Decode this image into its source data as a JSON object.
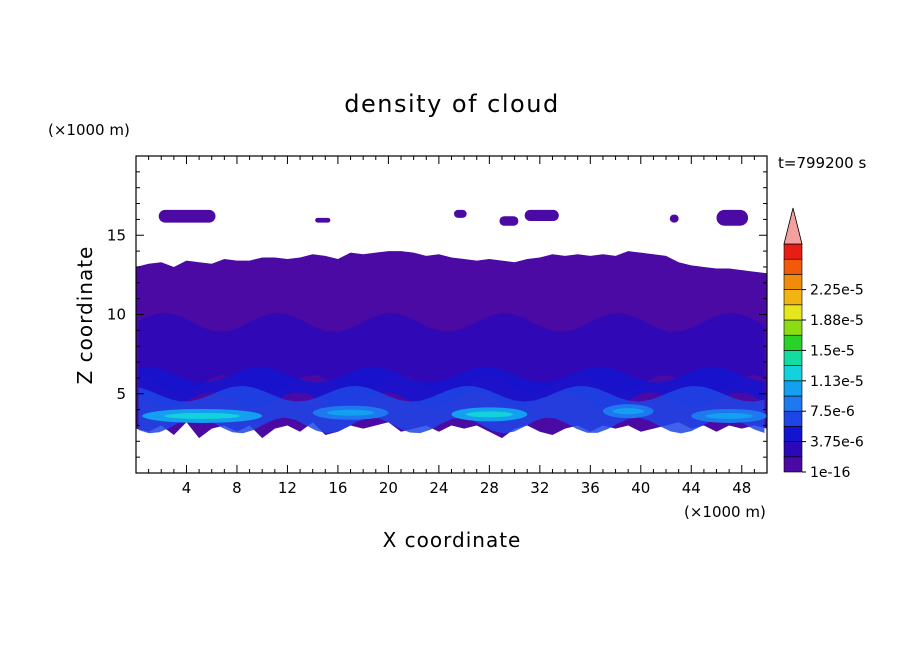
{
  "chart_data": {
    "type": "heatmap",
    "title": "density of cloud",
    "xlabel": "X coordinate",
    "ylabel": "Z coordinate",
    "x_unit": "(×1000 m)",
    "y_unit": "(×1000 m)",
    "time_label": "t=799200 s",
    "xlim": [
      0,
      50
    ],
    "ylim": [
      0,
      20
    ],
    "x_ticks": [
      4,
      8,
      12,
      16,
      20,
      24,
      28,
      32,
      36,
      40,
      44,
      48
    ],
    "y_ticks": [
      5,
      10,
      15
    ],
    "colorbar": {
      "colors": [
        "#4b0aa3",
        "#2c08b8",
        "#1414d0",
        "#1e46e6",
        "#1e78f0",
        "#14a0f0",
        "#14d2dc",
        "#14dca0",
        "#28d228",
        "#8cdc14",
        "#e6e61e",
        "#f0b414",
        "#f08c0a",
        "#f05a0a",
        "#e61e14"
      ],
      "extend_color": "#f4a0a0",
      "labels": [
        "1e-16",
        "3.75e-6",
        "7.5e-6",
        "1.13e-5",
        "1.5e-5",
        "1.88e-5",
        "2.25e-5"
      ],
      "label_levels": [
        0,
        2,
        4,
        6,
        8,
        10,
        12
      ]
    },
    "cloud_layer": {
      "note_regions": [
        {
          "name": "main",
          "x": [
            0,
            50
          ],
          "z_bottom": [
            2.8,
            2.6,
            3.0,
            2.4,
            3.2,
            2.2,
            2.8,
            3.0,
            2.6,
            3.0,
            2.2,
            2.8,
            3.0,
            2.6,
            3.2,
            2.4,
            2.6,
            3.0,
            2.8,
            3.0,
            3.2,
            2.6,
            2.8,
            3.0,
            2.6,
            3.0,
            2.8,
            3.0,
            2.6,
            2.2,
            2.8,
            3.0,
            2.6,
            2.4,
            2.8,
            3.0,
            2.6,
            3.0,
            2.8,
            3.0,
            2.6,
            2.8,
            3.0,
            3.2,
            2.8,
            3.0,
            2.6,
            3.0,
            2.8,
            3.0,
            2.8
          ],
          "z_top": [
            13.0,
            13.2,
            13.3,
            13.0,
            13.4,
            13.3,
            13.2,
            13.5,
            13.4,
            13.4,
            13.6,
            13.6,
            13.5,
            13.6,
            13.8,
            13.7,
            13.5,
            13.9,
            13.8,
            13.9,
            14.0,
            14.0,
            13.9,
            13.7,
            13.8,
            13.6,
            13.5,
            13.4,
            13.5,
            13.4,
            13.3,
            13.5,
            13.6,
            13.8,
            13.7,
            13.8,
            13.7,
            13.8,
            13.7,
            14.0,
            13.9,
            13.8,
            13.7,
            13.3,
            13.1,
            13.0,
            12.9,
            12.9,
            12.8,
            12.7,
            12.6
          ]
        }
      ],
      "upper_patches": [
        {
          "x": [
            1.8,
            6.3
          ],
          "z": [
            15.8,
            16.6
          ]
        },
        {
          "x": [
            14.2,
            15.4
          ],
          "z": [
            15.8,
            16.1
          ]
        },
        {
          "x": [
            25.2,
            26.2
          ],
          "z": [
            16.1,
            16.6
          ]
        },
        {
          "x": [
            28.8,
            30.3
          ],
          "z": [
            15.6,
            16.2
          ]
        },
        {
          "x": [
            30.8,
            33.5
          ],
          "z": [
            15.9,
            16.6
          ]
        },
        {
          "x": [
            42.3,
            43.0
          ],
          "z": [
            15.8,
            16.3
          ]
        },
        {
          "x": [
            46.0,
            48.5
          ],
          "z": [
            15.6,
            16.6
          ]
        }
      ],
      "bright_streaks": [
        {
          "x": [
            0.5,
            10
          ],
          "z_center": 3.6,
          "level": 5
        },
        {
          "x": [
            14,
            20
          ],
          "z_center": 3.8,
          "level": 4
        },
        {
          "x": [
            25,
            31
          ],
          "z_center": 3.7,
          "level": 5
        },
        {
          "x": [
            37,
            41
          ],
          "z_center": 3.9,
          "level": 4
        },
        {
          "x": [
            44,
            50
          ],
          "z_center": 3.6,
          "level": 4
        }
      ]
    }
  }
}
